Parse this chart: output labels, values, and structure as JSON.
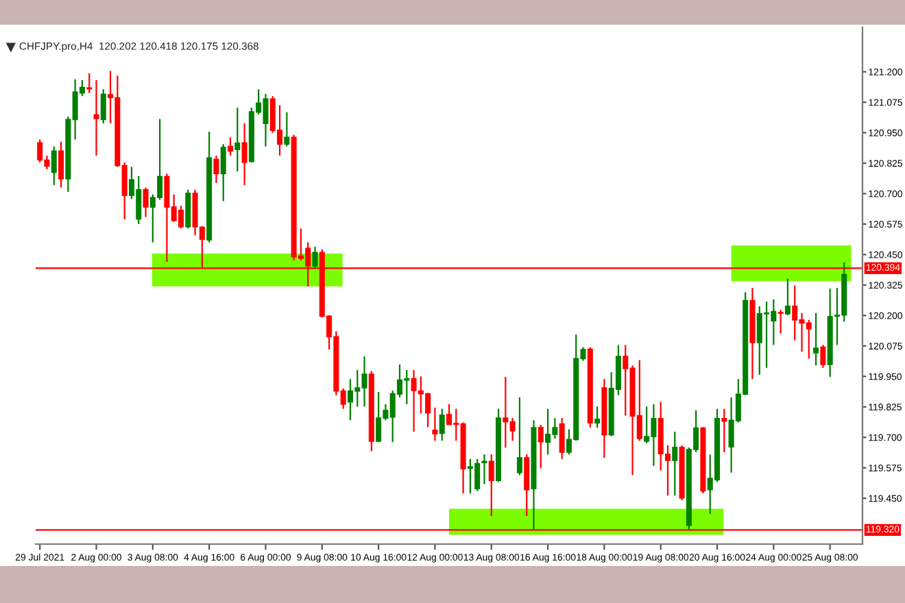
{
  "chart_data": {
    "type": "candlestick",
    "title": "CHFJPY.pro,H4  120.202 120.418 120.175 120.368",
    "categories": [
      "29 Jul 2021",
      null,
      null,
      null,
      null,
      null,
      null,
      null,
      "2 Aug 00:00",
      null,
      null,
      null,
      null,
      null,
      null,
      null,
      "3 Aug 08:00",
      null,
      null,
      null,
      null,
      null,
      null,
      null,
      "4 Aug 16:00",
      null,
      null,
      null,
      null,
      null,
      null,
      null,
      "6 Aug 00:00",
      null,
      null,
      null,
      null,
      null,
      null,
      null,
      "9 Aug 08:00",
      null,
      null,
      null,
      null,
      null,
      null,
      null,
      "10 Aug 16:00",
      null,
      null,
      null,
      null,
      null,
      null,
      null,
      "12 Aug 00:00",
      null,
      null,
      null,
      null,
      null,
      null,
      null,
      "13 Aug 08:00",
      null,
      null,
      null,
      null,
      null,
      null,
      null,
      "16 Aug 16:00",
      null,
      null,
      null,
      null,
      null,
      null,
      null,
      "18 Aug 00:00",
      null,
      null,
      null,
      null,
      null,
      null,
      null,
      "19 Aug 08:00",
      null,
      null,
      null,
      null,
      null,
      null,
      null,
      "20 Aug 16:00",
      null,
      null,
      null,
      null,
      null,
      null,
      null,
      "24 Aug 00:00",
      null,
      null,
      null,
      null,
      null,
      null,
      null,
      "25 Aug 08:00",
      null,
      null
    ],
    "ohlc": [
      [
        120.909,
        120.922,
        120.828,
        120.838
      ],
      [
        120.838,
        120.856,
        120.8,
        120.813
      ],
      [
        120.787,
        120.894,
        120.735,
        120.875
      ],
      [
        120.875,
        120.913,
        120.725,
        120.761
      ],
      [
        120.761,
        121.016,
        120.707,
        121.004
      ],
      [
        121.004,
        121.169,
        120.922,
        121.117
      ],
      [
        121.113,
        121.166,
        121.1,
        121.136
      ],
      [
        121.134,
        121.194,
        121.113,
        121.13
      ],
      [
        121.023,
        121.166,
        120.856,
        121.008
      ],
      [
        121.004,
        121.128,
        120.988,
        121.108
      ],
      [
        121.106,
        121.203,
        120.988,
        121.094
      ],
      [
        121.093,
        121.184,
        120.81,
        120.815
      ],
      [
        120.815,
        120.828,
        120.594,
        120.693
      ],
      [
        120.693,
        120.81,
        120.678,
        120.757
      ],
      [
        120.596,
        120.772,
        120.575,
        120.716
      ],
      [
        120.716,
        120.725,
        120.604,
        120.645
      ],
      [
        120.645,
        120.697,
        120.5,
        120.684
      ],
      [
        120.684,
        121.006,
        120.675,
        120.77
      ],
      [
        120.77,
        120.782,
        120.42,
        120.645
      ],
      [
        120.645,
        120.697,
        120.585,
        120.589
      ],
      [
        120.632,
        120.65,
        120.557,
        120.564
      ],
      [
        120.564,
        120.716,
        120.557,
        120.701
      ],
      [
        120.701,
        120.716,
        120.529,
        120.564
      ],
      [
        120.562,
        120.566,
        120.397,
        120.512
      ],
      [
        120.51,
        120.954,
        120.5,
        120.847
      ],
      [
        120.841,
        120.856,
        120.744,
        120.782
      ],
      [
        120.782,
        120.903,
        120.669,
        120.89
      ],
      [
        120.894,
        120.931,
        120.856,
        120.875
      ],
      [
        120.881,
        121.053,
        120.791,
        120.907
      ],
      [
        120.909,
        120.988,
        120.735,
        120.828
      ],
      [
        120.832,
        121.053,
        120.828,
        121.036
      ],
      [
        121.034,
        121.128,
        121.025,
        121.072
      ],
      [
        120.988,
        121.109,
        120.894,
        121.089
      ],
      [
        121.089,
        121.1,
        120.95,
        120.96
      ],
      [
        120.96,
        121.063,
        120.856,
        120.903
      ],
      [
        120.903,
        121.034,
        120.894,
        120.931
      ],
      [
        120.931,
        120.941,
        120.426,
        120.44
      ],
      [
        120.444,
        120.557,
        120.426,
        120.435
      ],
      [
        120.476,
        120.5,
        120.319,
        120.403
      ],
      [
        120.403,
        120.482,
        120.397,
        120.459
      ],
      [
        120.459,
        120.472,
        120.192,
        120.197
      ],
      [
        120.197,
        120.201,
        120.06,
        120.113
      ],
      [
        120.113,
        120.135,
        119.873,
        119.89
      ],
      [
        119.89,
        119.901,
        119.817,
        119.836
      ],
      [
        119.845,
        119.939,
        119.77,
        119.89
      ],
      [
        119.89,
        119.976,
        119.826,
        119.903
      ],
      [
        119.903,
        120.032,
        119.826,
        119.959
      ],
      [
        119.959,
        119.972,
        119.643,
        119.684
      ],
      [
        119.684,
        119.886,
        119.68,
        119.779
      ],
      [
        119.779,
        119.836,
        119.77,
        119.811
      ],
      [
        119.783,
        119.892,
        119.68,
        119.879
      ],
      [
        119.877,
        119.999,
        119.864,
        119.935
      ],
      [
        119.935,
        119.976,
        119.836,
        119.941
      ],
      [
        119.941,
        119.976,
        119.723,
        119.892
      ],
      [
        119.89,
        119.95,
        119.798,
        119.879
      ],
      [
        119.879,
        119.882,
        119.742,
        119.8
      ],
      [
        119.729,
        119.822,
        119.686,
        119.714
      ],
      [
        119.716,
        119.817,
        119.686,
        119.791
      ],
      [
        119.794,
        119.836,
        119.751,
        119.753
      ],
      [
        119.757,
        119.817,
        119.686,
        119.753
      ],
      [
        119.755,
        119.761,
        119.47,
        119.571
      ],
      [
        119.573,
        119.611,
        119.47,
        119.579
      ],
      [
        119.489,
        119.611,
        119.48,
        119.592
      ],
      [
        119.596,
        119.63,
        119.508,
        119.601
      ],
      [
        119.601,
        119.63,
        119.377,
        119.523
      ],
      [
        119.523,
        119.817,
        119.517,
        119.779
      ],
      [
        119.779,
        119.948,
        119.658,
        119.764
      ],
      [
        119.764,
        119.779,
        119.686,
        119.727
      ],
      [
        119.555,
        119.864,
        119.545,
        119.616
      ],
      [
        119.616,
        119.63,
        119.377,
        119.485
      ],
      [
        119.489,
        119.77,
        119.32,
        119.74
      ],
      [
        119.74,
        119.751,
        119.573,
        119.682
      ],
      [
        119.68,
        119.817,
        119.629,
        119.712
      ],
      [
        119.712,
        119.779,
        119.695,
        119.74
      ],
      [
        119.755,
        119.779,
        119.611,
        119.639
      ],
      [
        119.639,
        119.733,
        119.629,
        119.691
      ],
      [
        119.691,
        120.122,
        119.686,
        120.023
      ],
      [
        120.023,
        120.07,
        120.014,
        120.06
      ],
      [
        120.062,
        120.07,
        119.74,
        119.759
      ],
      [
        119.759,
        119.826,
        119.74,
        119.774
      ],
      [
        119.903,
        119.939,
        119.616,
        119.71
      ],
      [
        119.71,
        119.967,
        119.705,
        119.901
      ],
      [
        119.897,
        120.079,
        119.873,
        120.032
      ],
      [
        120.032,
        120.079,
        119.789,
        119.982
      ],
      [
        119.984,
        119.995,
        119.545,
        119.787
      ],
      [
        119.789,
        120.017,
        119.686,
        119.695
      ],
      [
        119.684,
        119.826,
        119.676,
        119.703
      ],
      [
        119.703,
        119.836,
        119.583,
        119.777
      ],
      [
        119.777,
        119.845,
        119.564,
        119.633
      ],
      [
        119.631,
        119.667,
        119.461,
        119.605
      ],
      [
        119.605,
        119.723,
        119.461,
        119.659
      ],
      [
        119.659,
        119.667,
        119.442,
        119.451
      ],
      [
        119.339,
        119.658,
        119.32,
        119.65
      ],
      [
        119.65,
        119.811,
        119.639,
        119.738
      ],
      [
        119.738,
        119.742,
        119.47,
        119.48
      ],
      [
        119.485,
        119.629,
        119.386,
        119.532
      ],
      [
        119.526,
        119.817,
        119.517,
        119.777
      ],
      [
        119.777,
        119.817,
        119.639,
        119.766
      ],
      [
        119.661,
        119.864,
        119.555,
        119.77
      ],
      [
        119.768,
        119.939,
        119.761,
        119.877
      ],
      [
        119.877,
        120.295,
        119.873,
        120.261
      ],
      [
        120.261,
        120.313,
        119.939,
        120.089
      ],
      [
        120.089,
        120.238,
        119.957,
        120.207
      ],
      [
        120.207,
        120.257,
        119.985,
        120.21
      ],
      [
        120.178,
        120.266,
        120.079,
        120.216
      ],
      [
        120.212,
        120.223,
        120.126,
        120.209
      ],
      [
        120.207,
        120.351,
        120.201,
        120.238
      ],
      [
        120.238,
        120.323,
        120.098,
        120.182
      ],
      [
        120.182,
        120.21,
        120.051,
        120.169
      ],
      [
        120.169,
        120.182,
        120.023,
        120.145
      ],
      [
        120.047,
        120.21,
        119.995,
        120.066
      ],
      [
        120.07,
        120.079,
        119.985,
        119.999
      ],
      [
        119.999,
        120.31,
        119.948,
        120.195
      ],
      [
        120.197,
        120.313,
        120.079,
        120.201
      ],
      [
        120.202,
        120.418,
        120.175,
        120.368
      ]
    ],
    "colors": [
      "#ff0000",
      "#ff0000",
      "#008000",
      "#ff0000",
      "#008000",
      "#008000",
      "#008000",
      "#ff0000",
      "#ff0000",
      "#008000",
      "#ff0000",
      "#ff0000",
      "#ff0000",
      "#008000",
      "#008000",
      "#ff0000",
      "#008000",
      "#008000",
      "#ff0000",
      "#ff0000",
      "#ff0000",
      "#008000",
      "#ff0000",
      "#ff0000",
      "#008000",
      "#ff0000",
      "#008000",
      "#ff0000",
      "#008000",
      "#ff0000",
      "#008000",
      "#008000",
      "#008000",
      "#ff0000",
      "#ff0000",
      "#008000",
      "#ff0000",
      "#ff0000",
      "#ff0000",
      "#008000",
      "#ff0000",
      "#ff0000",
      "#ff0000",
      "#ff0000",
      "#008000",
      "#008000",
      "#008000",
      "#ff0000",
      "#008000",
      "#008000",
      "#008000",
      "#008000",
      "#008000",
      "#ff0000",
      "#ff0000",
      "#ff0000",
      "#ff0000",
      "#008000",
      "#ff0000",
      "#ff0000",
      "#ff0000",
      "#008000",
      "#008000",
      "#008000",
      "#ff0000",
      "#008000",
      "#ff0000",
      "#ff0000",
      "#008000",
      "#ff0000",
      "#008000",
      "#ff0000",
      "#008000",
      "#008000",
      "#ff0000",
      "#008000",
      "#008000",
      "#008000",
      "#ff0000",
      "#008000",
      "#ff0000",
      "#008000",
      "#008000",
      "#ff0000",
      "#ff0000",
      "#ff0000",
      "#008000",
      "#008000",
      "#ff0000",
      "#ff0000",
      "#008000",
      "#ff0000",
      "#008000",
      "#008000",
      "#ff0000",
      "#008000",
      "#008000",
      "#ff0000",
      "#008000",
      "#008000",
      "#008000",
      "#ff0000",
      "#008000",
      "#008000",
      "#008000",
      "#ff0000",
      "#008000",
      "#ff0000",
      "#ff0000",
      "#ff0000",
      "#008000",
      "#ff0000",
      "#008000",
      "#008000",
      "#008000"
    ],
    "ylim": [
      119.262,
      121.382
    ],
    "yticks": [
      {
        "value": 119.45,
        "label": "119.450"
      },
      {
        "value": 119.575,
        "label": "119.575"
      },
      {
        "value": 119.7,
        "label": "119.700"
      },
      {
        "value": 119.825,
        "label": "119.825"
      },
      {
        "value": 119.95,
        "label": "119.950"
      },
      {
        "value": 120.075,
        "label": "120.075"
      },
      {
        "value": 120.2,
        "label": "120.200"
      },
      {
        "value": 120.325,
        "label": "120.325"
      },
      {
        "value": 120.45,
        "label": "120.450"
      },
      {
        "value": 120.575,
        "label": "120.575"
      },
      {
        "value": 120.7,
        "label": "120.700"
      },
      {
        "value": 120.825,
        "label": "120.825"
      },
      {
        "value": 120.95,
        "label": "120.950"
      },
      {
        "value": 121.075,
        "label": "121.075"
      },
      {
        "value": 121.2,
        "label": "121.200"
      }
    ],
    "ref_lines": [
      {
        "axis": "y",
        "value": 120.394,
        "label": "120.394",
        "color": "#ff0000"
      },
      {
        "axis": "y",
        "value": 119.32,
        "label": "119.320",
        "color": "#ff0000"
      }
    ],
    "bands": [
      {
        "axis": "y",
        "from": 120.319,
        "to": 120.454,
        "color": "#7cfc00"
      },
      {
        "axis": "y",
        "from": 119.3,
        "to": 119.407,
        "color": "#7cfc00"
      },
      {
        "axis": "y",
        "from": 120.34,
        "to": 120.487,
        "color": "#7cfc00"
      }
    ],
    "grid": false,
    "legend": false
  }
}
